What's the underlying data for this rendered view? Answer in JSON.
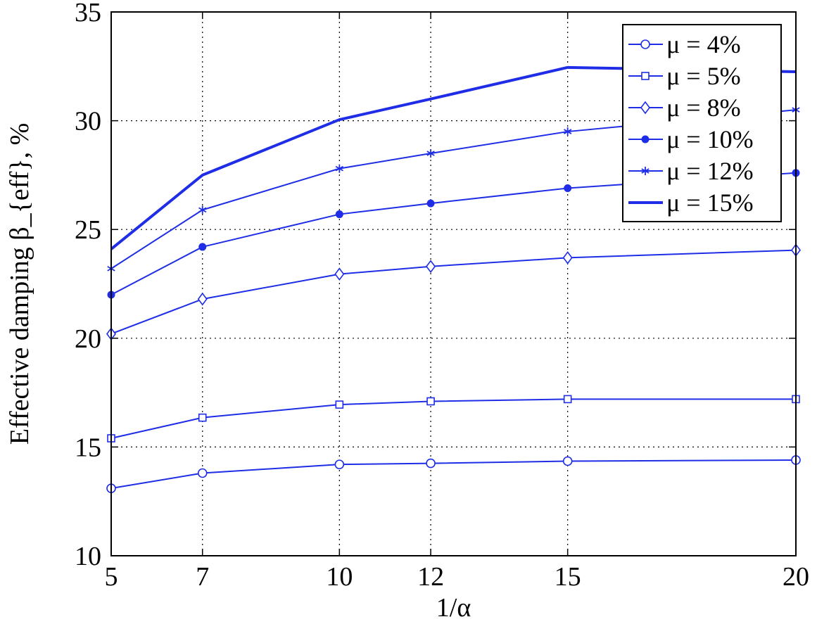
{
  "chart_data": {
    "type": "line",
    "title": "",
    "xlabel": "1/α",
    "ylabel": "Effective damping β_{eff}, %",
    "xlim": [
      5,
      20
    ],
    "ylim": [
      10,
      35
    ],
    "x": [
      5,
      7,
      10,
      12,
      15,
      20
    ],
    "x_ticks": [
      "5",
      "7",
      "10",
      "12",
      "15",
      "20"
    ],
    "y_ticks": [
      "10",
      "15",
      "20",
      "25",
      "30",
      "35"
    ],
    "grid": true,
    "legend_position": "top-right",
    "line_color": "#1f2ee6",
    "series": [
      {
        "name": "μ = 4%",
        "marker": "circle",
        "values": [
          13.1,
          13.8,
          14.2,
          14.25,
          14.35,
          14.4
        ]
      },
      {
        "name": "μ = 5%",
        "marker": "square",
        "values": [
          15.4,
          16.35,
          16.95,
          17.1,
          17.2,
          17.2
        ]
      },
      {
        "name": "μ = 8%",
        "marker": "diamond",
        "values": [
          20.2,
          21.8,
          22.95,
          23.3,
          23.7,
          24.05
        ]
      },
      {
        "name": "μ = 10%",
        "marker": "dot",
        "values": [
          22.0,
          24.2,
          25.7,
          26.2,
          26.9,
          27.6
        ]
      },
      {
        "name": "μ = 12%",
        "marker": "asterisk",
        "values": [
          23.2,
          25.9,
          27.8,
          28.5,
          29.5,
          30.5
        ]
      },
      {
        "name": "μ = 15%",
        "marker": "none",
        "values": [
          24.1,
          27.5,
          30.05,
          31.0,
          32.45,
          32.25
        ]
      }
    ]
  }
}
